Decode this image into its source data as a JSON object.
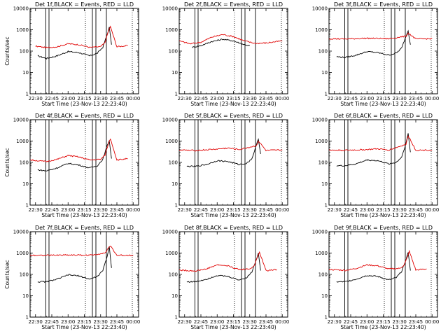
{
  "chart_data": [
    {
      "type": "line",
      "title": "Det 1f,BLACK = Events, RED = LLD",
      "xlabel": "Start Time (23-Nov-13 22:23:40)",
      "ylabel": "Counts/sec",
      "xlim": [
        "22:25",
        "00:05"
      ],
      "ylim": [
        1,
        10000
      ],
      "yscale": "log",
      "xticks": [
        "22:30",
        "22:45",
        "23:00",
        "23:15",
        "23:30",
        "23:45",
        "00:00"
      ],
      "yticks": [
        "1",
        "10",
        "100",
        "1000",
        "10000"
      ],
      "series": [
        {
          "color": "#000000",
          "x": [
            "22:32",
            "22:40",
            "22:50",
            "23:00",
            "23:10",
            "23:20",
            "23:27",
            "23:32",
            "23:36",
            "23:38",
            "23:40"
          ],
          "values": [
            60,
            45,
            60,
            95,
            85,
            60,
            80,
            150,
            600,
            1300,
            200
          ]
        },
        {
          "color": "#e00000",
          "x": [
            "22:30",
            "22:40",
            "22:50",
            "23:00",
            "23:10",
            "23:20",
            "23:30",
            "23:34",
            "23:37",
            "23:39",
            "23:45",
            "23:55"
          ],
          "values": [
            170,
            145,
            160,
            220,
            200,
            150,
            160,
            250,
            800,
            1400,
            160,
            180
          ]
        }
      ]
    },
    {
      "type": "line",
      "title": "Det 2f,BLACK = Events, RED = LLD",
      "xlabel": "Start Time (23-Nov-13 22:23:40)",
      "ylabel": "",
      "xlim": [
        "22:25",
        "00:05"
      ],
      "ylim": [
        1,
        10000
      ],
      "yscale": "log",
      "xticks": [
        "22:30",
        "22:45",
        "23:00",
        "23:15",
        "23:30",
        "23:45",
        "00:00"
      ],
      "yticks": [
        "1",
        "10",
        "100",
        "1000",
        "10000"
      ],
      "series": [
        {
          "color": "#000000",
          "x": [
            "22:37",
            "22:45",
            "22:55",
            "23:05",
            "23:15",
            "23:25",
            "23:30"
          ],
          "values": [
            150,
            180,
            280,
            360,
            300,
            200,
            180
          ]
        },
        {
          "color": "#e00000",
          "x": [
            "22:25",
            "22:35",
            "22:45",
            "22:55",
            "23:05",
            "23:15",
            "23:25",
            "23:35",
            "23:45",
            "23:55",
            "00:00"
          ],
          "values": [
            300,
            220,
            260,
            450,
            600,
            480,
            300,
            230,
            240,
            280,
            300
          ]
        }
      ]
    },
    {
      "type": "line",
      "title": "Det 3f,BLACK = Events, RED = LLD",
      "xlabel": "Start Time (23-Nov-13 22:23:40)",
      "ylabel": "",
      "xlim": [
        "22:25",
        "00:05"
      ],
      "ylim": [
        1,
        10000
      ],
      "yscale": "log",
      "xticks": [
        "22:30",
        "22:45",
        "23:00",
        "23:15",
        "23:30",
        "23:45",
        "00:00"
      ],
      "yticks": [
        "1",
        "10",
        "100",
        "1000",
        "10000"
      ],
      "series": [
        {
          "color": "#000000",
          "x": [
            "22:32",
            "22:40",
            "22:50",
            "23:00",
            "23:10",
            "23:20",
            "23:27",
            "23:32",
            "23:36",
            "23:38",
            "23:40"
          ],
          "values": [
            55,
            50,
            65,
            95,
            85,
            65,
            80,
            140,
            500,
            900,
            200
          ]
        },
        {
          "color": "#e00000",
          "x": [
            "22:25",
            "22:40",
            "23:00",
            "23:20",
            "23:36",
            "23:38",
            "23:45",
            "00:00"
          ],
          "values": [
            380,
            370,
            400,
            380,
            500,
            700,
            370,
            380
          ]
        }
      ]
    },
    {
      "type": "line",
      "title": "Det 4f,BLACK = Events, RED = LLD",
      "xlabel": "Start Time (23-Nov-13 22:23:40)",
      "ylabel": "Counts/sec",
      "xlim": [
        "22:25",
        "00:05"
      ],
      "ylim": [
        1,
        10000
      ],
      "yscale": "log",
      "xticks": [
        "22:30",
        "22:45",
        "23:00",
        "23:15",
        "23:30",
        "23:45",
        "00:00"
      ],
      "yticks": [
        "1",
        "10",
        "100",
        "1000",
        "10000"
      ],
      "series": [
        {
          "color": "#000000",
          "x": [
            "22:32",
            "22:40",
            "22:50",
            "23:00",
            "23:10",
            "23:20",
            "23:27",
            "23:32",
            "23:36",
            "23:38",
            "23:40"
          ],
          "values": [
            45,
            40,
            55,
            90,
            75,
            55,
            70,
            140,
            600,
            1100,
            150
          ]
        },
        {
          "color": "#e00000",
          "x": [
            "22:25",
            "22:40",
            "22:50",
            "23:00",
            "23:10",
            "23:20",
            "23:30",
            "23:34",
            "23:37",
            "23:39",
            "23:45",
            "23:55"
          ],
          "values": [
            130,
            110,
            140,
            210,
            180,
            130,
            140,
            220,
            700,
            1300,
            130,
            150
          ]
        }
      ]
    },
    {
      "type": "line",
      "title": "Det 5f,BLACK = Events, RED = LLD",
      "xlabel": "Start Time (23-Nov-13 22:23:40)",
      "ylabel": "",
      "xlim": [
        "22:25",
        "00:05"
      ],
      "ylim": [
        1,
        10000
      ],
      "yscale": "log",
      "xticks": [
        "22:30",
        "22:45",
        "23:00",
        "23:15",
        "23:30",
        "23:45",
        "00:00"
      ],
      "yticks": [
        "1",
        "10",
        "100",
        "1000",
        "10000"
      ],
      "series": [
        {
          "color": "#000000",
          "x": [
            "22:32",
            "22:40",
            "22:50",
            "23:00",
            "23:10",
            "23:20",
            "23:27",
            "23:32",
            "23:36",
            "23:38",
            "23:40"
          ],
          "values": [
            65,
            65,
            80,
            120,
            110,
            80,
            90,
            150,
            600,
            1300,
            250
          ]
        },
        {
          "color": "#e00000",
          "x": [
            "22:25",
            "22:40",
            "23:00",
            "23:10",
            "23:20",
            "23:36",
            "23:38",
            "23:45",
            "00:00"
          ],
          "values": [
            380,
            360,
            420,
            470,
            400,
            600,
            1000,
            360,
            380
          ]
        }
      ]
    },
    {
      "type": "line",
      "title": "Det 6f,BLACK = Events, RED = LLD",
      "xlabel": "Start Time (23-Nov-13 22:23:40)",
      "ylabel": "",
      "xlim": [
        "22:25",
        "00:05"
      ],
      "ylim": [
        1,
        10000
      ],
      "yscale": "log",
      "xticks": [
        "22:30",
        "22:45",
        "23:00",
        "23:15",
        "23:30",
        "23:45",
        "00:00"
      ],
      "yticks": [
        "1",
        "10",
        "100",
        "1000",
        "10000"
      ],
      "series": [
        {
          "color": "#000000",
          "x": [
            "22:32",
            "22:40",
            "22:50",
            "23:00",
            "23:10",
            "23:20",
            "23:27",
            "23:32",
            "23:36",
            "23:38",
            "23:40"
          ],
          "values": [
            70,
            70,
            85,
            130,
            120,
            85,
            100,
            180,
            800,
            2200,
            300
          ]
        },
        {
          "color": "#e00000",
          "x": [
            "22:25",
            "22:40",
            "23:00",
            "23:10",
            "23:20",
            "23:36",
            "23:38",
            "23:45",
            "00:00"
          ],
          "values": [
            380,
            370,
            400,
            430,
            380,
            700,
            1800,
            370,
            380
          ]
        }
      ]
    },
    {
      "type": "line",
      "title": "Det 7f,BLACK = Events, RED = LLD",
      "xlabel": "Start Time (23-Nov-13 22:23:40)",
      "ylabel": "Counts/sec",
      "xlim": [
        "22:25",
        "00:05"
      ],
      "ylim": [
        1,
        10000
      ],
      "yscale": "log",
      "xticks": [
        "22:30",
        "22:45",
        "23:00",
        "23:15",
        "23:30",
        "23:45",
        "00:00"
      ],
      "yticks": [
        "1",
        "10",
        "100",
        "1000",
        "10000"
      ],
      "series": [
        {
          "color": "#000000",
          "x": [
            "22:32",
            "22:40",
            "22:50",
            "23:00",
            "23:10",
            "23:20",
            "23:27",
            "23:32",
            "23:36",
            "23:38",
            "23:40"
          ],
          "values": [
            45,
            45,
            60,
            95,
            85,
            60,
            80,
            150,
            700,
            2000,
            200
          ]
        },
        {
          "color": "#e00000",
          "x": [
            "22:25",
            "22:40",
            "23:00",
            "23:20",
            "23:34",
            "23:37",
            "23:39",
            "23:45",
            "00:00"
          ],
          "values": [
            800,
            780,
            820,
            790,
            1000,
            1600,
            2200,
            780,
            800
          ]
        }
      ]
    },
    {
      "type": "line",
      "title": "Det 8f,BLACK = Events, RED = LLD",
      "xlabel": "Start Time (23-Nov-13 22:23:40)",
      "ylabel": "",
      "xlim": [
        "22:25",
        "00:05"
      ],
      "ylim": [
        1,
        10000
      ],
      "yscale": "log",
      "xticks": [
        "22:30",
        "22:45",
        "23:00",
        "23:15",
        "23:30",
        "23:45",
        "00:00"
      ],
      "yticks": [
        "1",
        "10",
        "100",
        "1000",
        "10000"
      ],
      "series": [
        {
          "color": "#000000",
          "x": [
            "22:32",
            "22:40",
            "22:50",
            "23:00",
            "23:10",
            "23:20",
            "23:27",
            "23:32",
            "23:36",
            "23:38",
            "23:40"
          ],
          "values": [
            45,
            45,
            60,
            90,
            80,
            55,
            70,
            130,
            500,
            1000,
            150
          ]
        },
        {
          "color": "#e00000",
          "x": [
            "22:25",
            "22:40",
            "22:50",
            "23:00",
            "23:10",
            "23:20",
            "23:30",
            "23:34",
            "23:37",
            "23:39",
            "23:45",
            "23:55"
          ],
          "values": [
            160,
            145,
            180,
            280,
            250,
            170,
            180,
            250,
            600,
            1100,
            150,
            170
          ]
        }
      ]
    },
    {
      "type": "line",
      "title": "Det 9f,BLACK = Events, RED = LLD",
      "xlabel": "Start Time (23-Nov-13 22:23:40)",
      "ylabel": "",
      "xlim": [
        "22:25",
        "00:05"
      ],
      "ylim": [
        1,
        10000
      ],
      "yscale": "log",
      "xticks": [
        "22:30",
        "22:45",
        "23:00",
        "23:15",
        "23:30",
        "23:45",
        "00:00"
      ],
      "yticks": [
        "1",
        "10",
        "100",
        "1000",
        "10000"
      ],
      "series": [
        {
          "color": "#000000",
          "x": [
            "22:32",
            "22:40",
            "22:50",
            "23:00",
            "23:10",
            "23:20",
            "23:27",
            "23:32",
            "23:36",
            "23:38",
            "23:40"
          ],
          "values": [
            45,
            45,
            60,
            90,
            80,
            55,
            70,
            140,
            500,
            1100,
            150
          ]
        },
        {
          "color": "#e00000",
          "x": [
            "22:25",
            "22:40",
            "22:50",
            "23:00",
            "23:10",
            "23:20",
            "23:30",
            "23:34",
            "23:37",
            "23:39",
            "23:45",
            "23:55"
          ],
          "values": [
            170,
            155,
            190,
            280,
            250,
            180,
            190,
            260,
            600,
            1200,
            160,
            180
          ]
        }
      ]
    }
  ]
}
